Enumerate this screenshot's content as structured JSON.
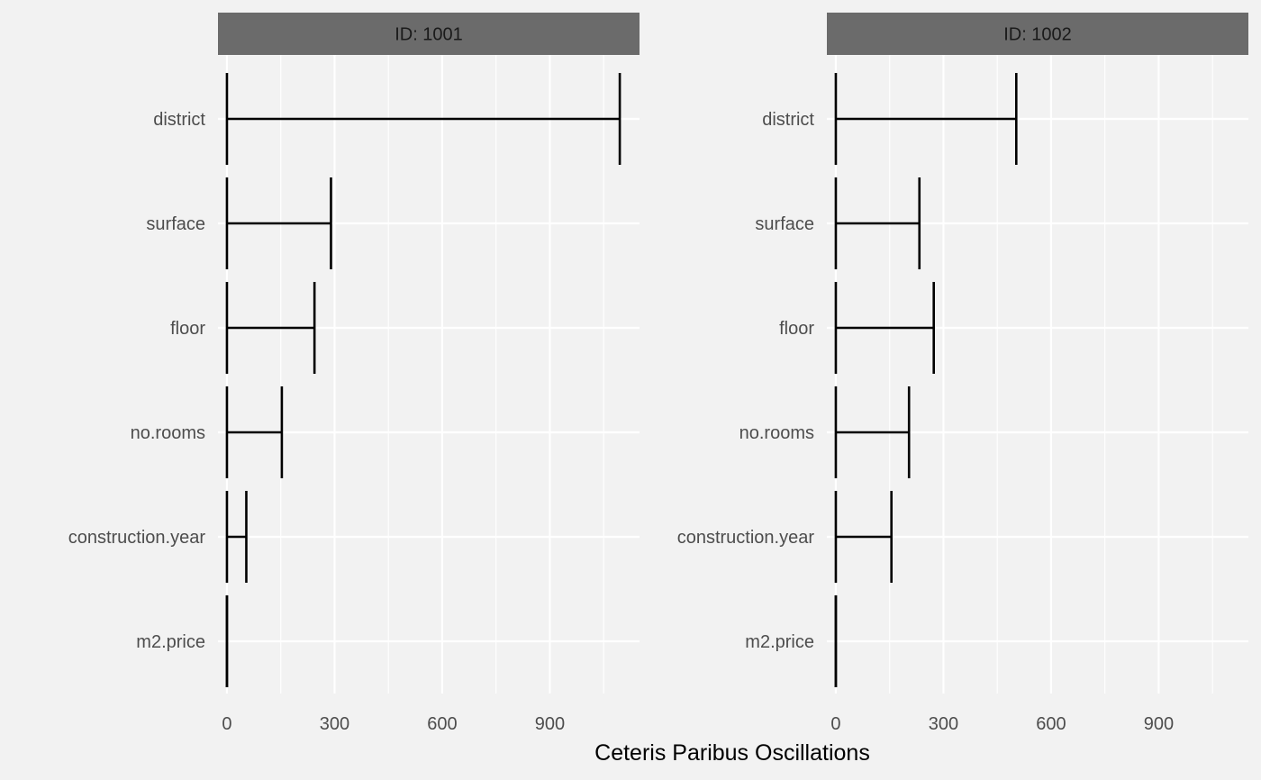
{
  "chart_data": {
    "type": "bar",
    "xlabel": "Ceteris Paribus Oscillations",
    "ylabel": "",
    "xlim": [
      -25,
      1150
    ],
    "x_ticks": [
      0,
      300,
      600,
      900
    ],
    "x_tick_labels": [
      "0",
      "300",
      "600",
      "900"
    ],
    "x_minor_ticks": [
      150,
      450,
      750,
      1050
    ],
    "grid": true,
    "categories": [
      "district",
      "surface",
      "floor",
      "no.rooms",
      "construction.year",
      "m2.price"
    ],
    "panels": [
      {
        "title": "ID: 1001",
        "values": [
          1095,
          290,
          244,
          153,
          54,
          0
        ]
      },
      {
        "title": "ID: 1002",
        "values": [
          503,
          233,
          273,
          204,
          155,
          0
        ]
      }
    ]
  }
}
